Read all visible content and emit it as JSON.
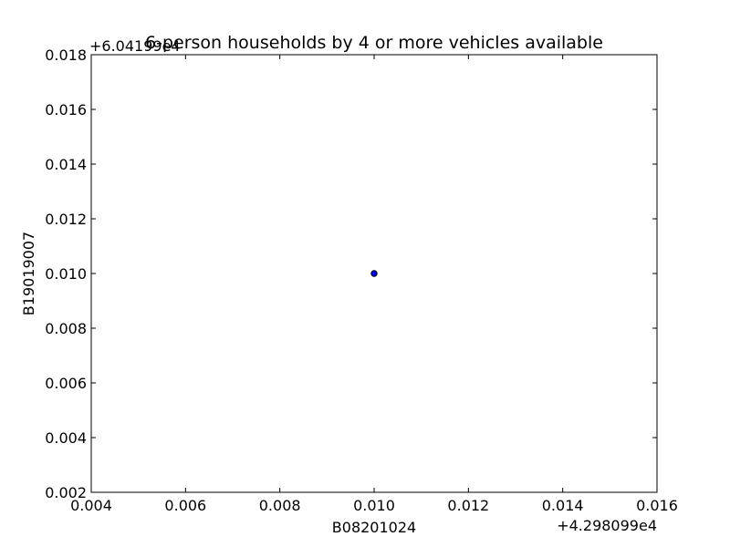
{
  "chart_data": {
    "type": "scatter",
    "title": "6-person households by 4 or more vehicles available",
    "xlabel": "B08201024",
    "ylabel": "B19019007",
    "x_offset_label": "+4.298099e4",
    "y_offset_label": "+6.04199e4",
    "xlim": [
      0.004,
      0.016
    ],
    "ylim": [
      0.002,
      0.018
    ],
    "x_ticks": [
      "0.004",
      "0.006",
      "0.008",
      "0.010",
      "0.012",
      "0.014",
      "0.016"
    ],
    "y_ticks": [
      "0.002",
      "0.004",
      "0.006",
      "0.008",
      "0.010",
      "0.012",
      "0.014",
      "0.016",
      "0.018"
    ],
    "grid": false,
    "points": [
      {
        "x": 0.01,
        "y": 0.01
      }
    ],
    "colors": {
      "marker_fill": "#0000ff",
      "marker_edge": "#000000",
      "axes": "#000000"
    }
  }
}
